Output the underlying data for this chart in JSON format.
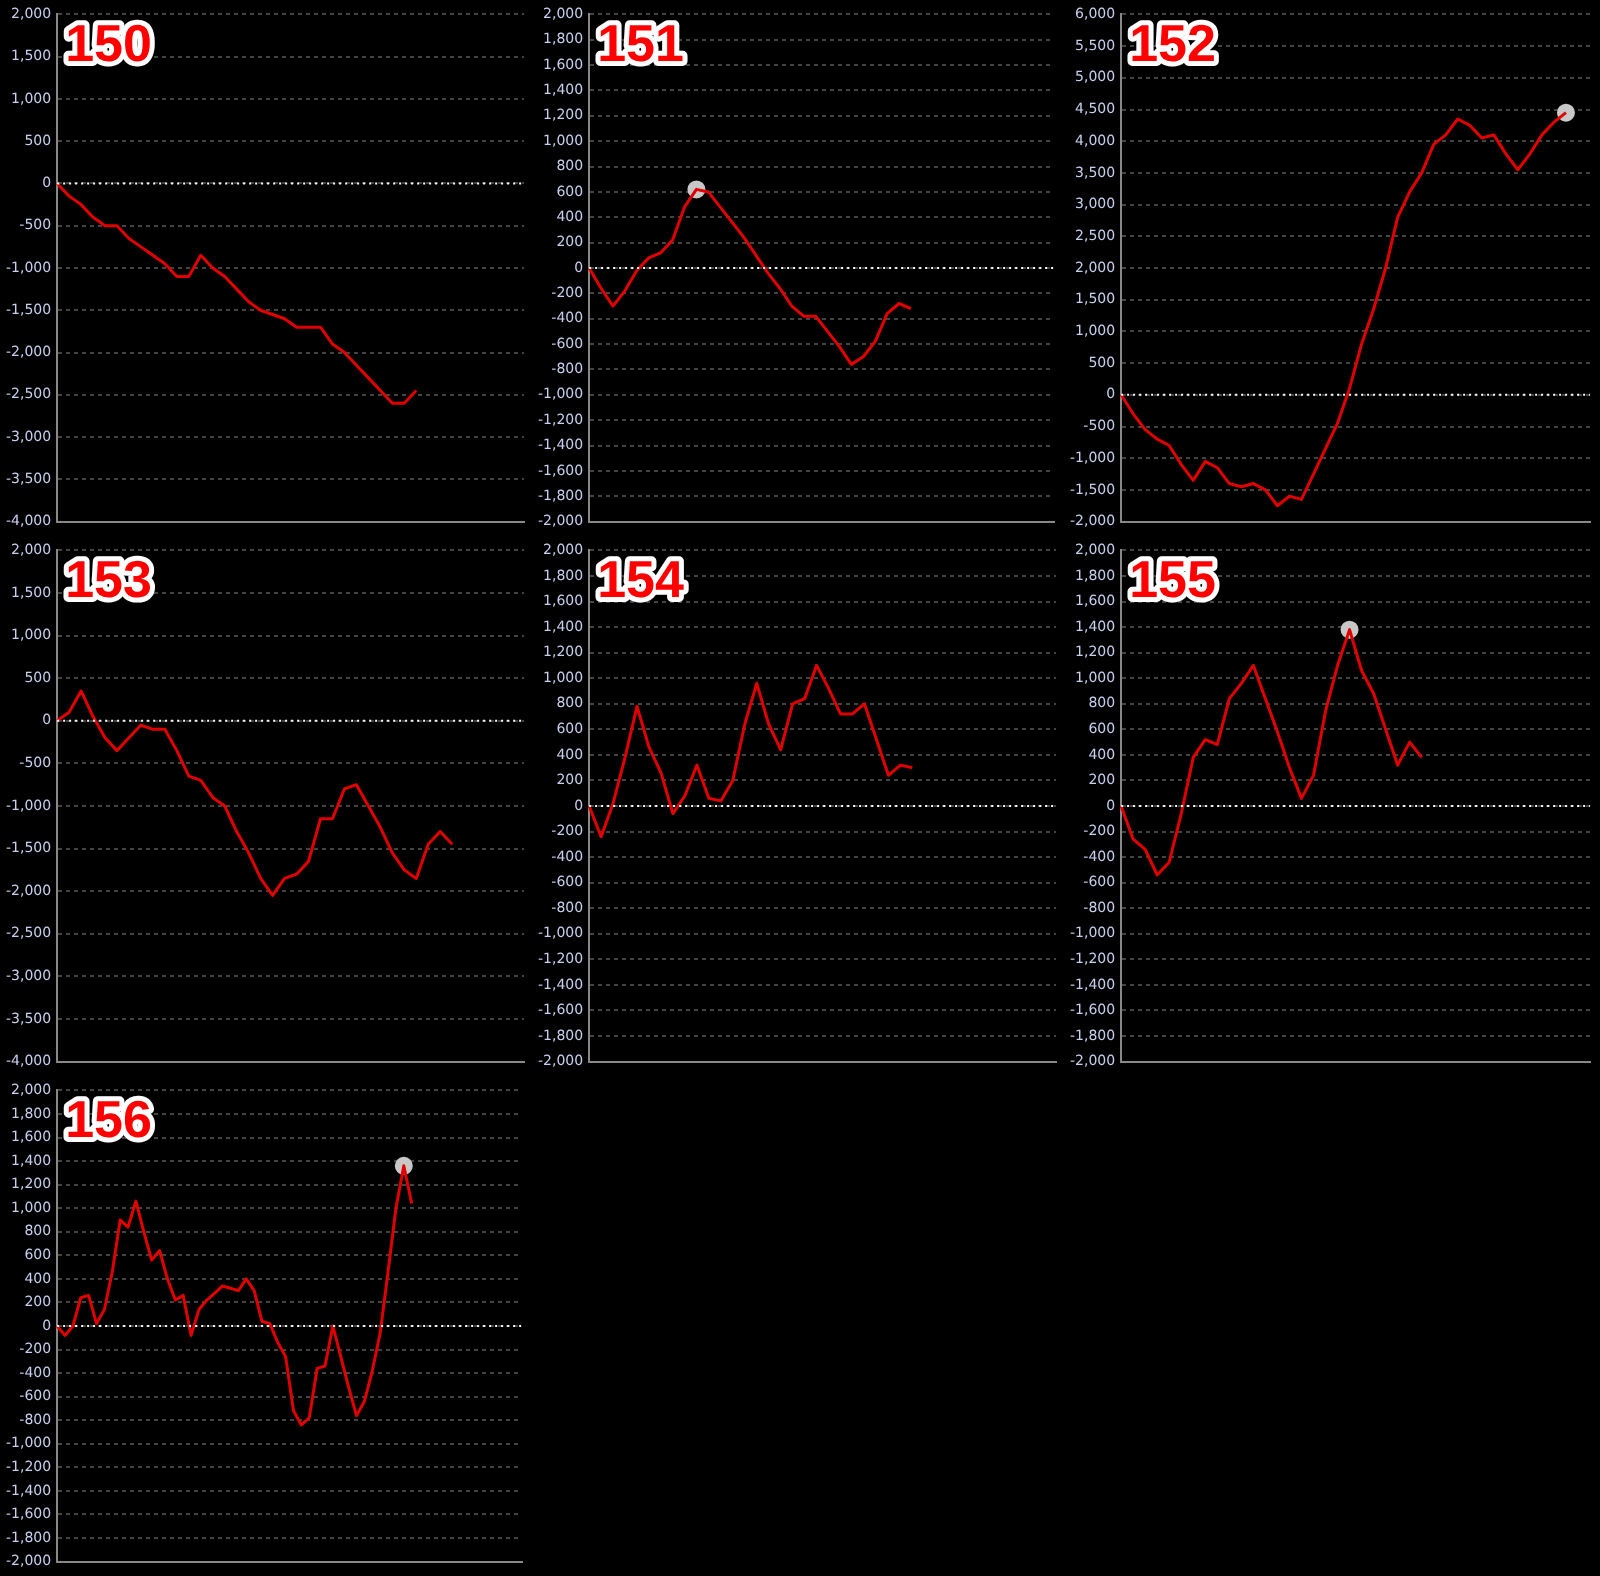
{
  "chart_data": [
    {
      "type": "line",
      "title": "150",
      "categories": [
        null,
        null,
        null,
        null,
        null,
        null,
        null,
        null,
        null,
        null,
        null,
        null,
        null,
        null,
        null,
        null,
        null,
        null,
        null,
        null,
        null,
        null,
        null,
        null,
        null,
        null,
        null,
        null,
        null,
        null,
        null,
        null,
        null,
        null,
        null,
        null,
        null,
        null,
        null,
        null
      ],
      "series": [
        {
          "type": "line",
          "marker": "none",
          "color": "#e00000",
          "values": [
            0,
            -150,
            -250,
            -400,
            -500,
            -500,
            -650,
            -750,
            -850,
            -950,
            -1100,
            -1100,
            -850,
            -1000,
            -1100,
            -1250,
            -1400,
            -1500,
            -1550,
            -1600,
            -1700,
            -1700,
            -1700,
            -1900,
            -2000,
            -2150,
            -2300,
            -2450,
            -2600,
            -2600,
            -2450,
            null,
            null,
            null,
            null,
            null,
            null,
            null,
            null,
            null
          ]
        }
      ],
      "ylim": [
        -4000,
        2000
      ],
      "yticks": [
        {
          "value": -4000,
          "label": "-4,000"
        },
        {
          "value": -3500,
          "label": "-3,500"
        },
        {
          "value": -3000,
          "label": "-3,000"
        },
        {
          "value": -2500,
          "label": "-2,500"
        },
        {
          "value": -2000,
          "label": "-2,000"
        },
        {
          "value": -1500,
          "label": "-1,500"
        },
        {
          "value": -1000,
          "label": "-1,000"
        },
        -500,
        0,
        500,
        {
          "value": 1000,
          "label": "1,000"
        },
        {
          "value": 1500,
          "label": "1,500"
        },
        {
          "value": 2000,
          "label": "2,000"
        }
      ],
      "grid": "y",
      "tick_labels": "y",
      "ref_lines": [
        {
          "axis": "y",
          "value": 0,
          "color": "#ffffff",
          "line_style": "dotted"
        }
      ]
    },
    {
      "type": "line",
      "title": "151",
      "categories": [
        null,
        null,
        null,
        null,
        null,
        null,
        null,
        null,
        null,
        null,
        null,
        null,
        null,
        null,
        null,
        null,
        null,
        null,
        null,
        null,
        null,
        null,
        null,
        null,
        null,
        null,
        null,
        null,
        null,
        null,
        null,
        null,
        null,
        null,
        null,
        null,
        null,
        null,
        null,
        null
      ],
      "series": [
        {
          "type": "line",
          "marker": "none",
          "color": "#e00000",
          "values": [
            0,
            -160,
            -300,
            -180,
            -20,
            80,
            120,
            220,
            480,
            620,
            600,
            480,
            360,
            240,
            100,
            -40,
            -160,
            -300,
            -380,
            -380,
            -500,
            -620,
            -760,
            -700,
            -580,
            -360,
            -280,
            -320,
            null,
            null,
            null,
            null,
            null,
            null,
            null,
            null,
            null,
            null,
            null,
            null
          ]
        },
        {
          "type": "scatter",
          "marker": "circle",
          "color": "#c8c8c8",
          "values": [
            null,
            null,
            null,
            null,
            null,
            null,
            null,
            null,
            null,
            620,
            null,
            null,
            null,
            null,
            null,
            null,
            null,
            null,
            null,
            null,
            null,
            null,
            null,
            null,
            null,
            null,
            null,
            null,
            null,
            null,
            null,
            null,
            null,
            null,
            null,
            null,
            null,
            null,
            null,
            null
          ]
        }
      ],
      "ylim": [
        -2000,
        2000
      ],
      "yticks": [
        {
          "value": -2000,
          "label": "-2,000"
        },
        {
          "value": -1800,
          "label": "-1,800"
        },
        {
          "value": -1600,
          "label": "-1,600"
        },
        {
          "value": -1400,
          "label": "-1,400"
        },
        {
          "value": -1200,
          "label": "-1,200"
        },
        {
          "value": -1000,
          "label": "-1,000"
        },
        -800,
        -600,
        -400,
        -200,
        0,
        200,
        400,
        600,
        800,
        {
          "value": 1000,
          "label": "1,000"
        },
        {
          "value": 1200,
          "label": "1,200"
        },
        {
          "value": 1400,
          "label": "1,400"
        },
        {
          "value": 1600,
          "label": "1,600"
        },
        {
          "value": 1800,
          "label": "1,800"
        },
        {
          "value": 2000,
          "label": "2,000"
        }
      ],
      "grid": "y",
      "tick_labels": "y",
      "ref_lines": [
        {
          "axis": "y",
          "value": 0,
          "color": "#ffffff",
          "line_style": "dotted"
        }
      ]
    },
    {
      "type": "line",
      "title": "152",
      "categories": [
        null,
        null,
        null,
        null,
        null,
        null,
        null,
        null,
        null,
        null,
        null,
        null,
        null,
        null,
        null,
        null,
        null,
        null,
        null,
        null,
        null,
        null,
        null,
        null,
        null,
        null,
        null,
        null,
        null,
        null,
        null,
        null,
        null,
        null,
        null,
        null,
        null,
        null,
        null,
        null
      ],
      "series": [
        {
          "type": "line",
          "marker": "none",
          "color": "#e00000",
          "values": [
            0,
            -300,
            -550,
            -700,
            -800,
            -1100,
            -1350,
            -1050,
            -1150,
            -1400,
            -1450,
            -1400,
            -1500,
            -1750,
            -1600,
            -1650,
            -1250,
            -850,
            -450,
            100,
            800,
            1350,
            2000,
            2800,
            3200,
            3500,
            3950,
            4100,
            4350,
            4250,
            4050,
            4100,
            3800,
            3550,
            3800,
            4100,
            4300,
            4450,
            null,
            null
          ]
        },
        {
          "type": "scatter",
          "marker": "circle",
          "color": "#c8c8c8",
          "values": [
            null,
            null,
            null,
            null,
            null,
            null,
            null,
            null,
            null,
            null,
            null,
            null,
            null,
            null,
            null,
            null,
            null,
            null,
            null,
            null,
            null,
            null,
            null,
            null,
            null,
            null,
            null,
            null,
            null,
            null,
            null,
            null,
            null,
            null,
            null,
            null,
            null,
            4450,
            null,
            null
          ]
        }
      ],
      "ylim": [
        -2000,
        6000
      ],
      "yticks": [
        {
          "value": -2000,
          "label": "-2,000"
        },
        {
          "value": -1500,
          "label": "-1,500"
        },
        {
          "value": -1000,
          "label": "-1,000"
        },
        -500,
        0,
        500,
        {
          "value": 1000,
          "label": "1,000"
        },
        {
          "value": 1500,
          "label": "1,500"
        },
        {
          "value": 2000,
          "label": "2,000"
        },
        {
          "value": 2500,
          "label": "2,500"
        },
        {
          "value": 3000,
          "label": "3,000"
        },
        {
          "value": 3500,
          "label": "3,500"
        },
        {
          "value": 4000,
          "label": "4,000"
        },
        {
          "value": 4500,
          "label": "4,500"
        },
        {
          "value": 5000,
          "label": "5,000"
        },
        {
          "value": 5500,
          "label": "5,500"
        },
        {
          "value": 6000,
          "label": "6,000"
        }
      ],
      "grid": "y",
      "tick_labels": "y",
      "ref_lines": [
        {
          "axis": "y",
          "value": 0,
          "color": "#ffffff",
          "line_style": "dotted"
        }
      ]
    },
    {
      "type": "line",
      "title": "153",
      "categories": [
        null,
        null,
        null,
        null,
        null,
        null,
        null,
        null,
        null,
        null,
        null,
        null,
        null,
        null,
        null,
        null,
        null,
        null,
        null,
        null,
        null,
        null,
        null,
        null,
        null,
        null,
        null,
        null,
        null,
        null,
        null,
        null,
        null,
        null,
        null,
        null,
        null,
        null,
        null,
        null
      ],
      "series": [
        {
          "type": "line",
          "marker": "none",
          "color": "#e00000",
          "values": [
            0,
            100,
            350,
            50,
            -200,
            -350,
            -200,
            -50,
            -100,
            -100,
            -350,
            -650,
            -700,
            -900,
            -1000,
            -1300,
            -1550,
            -1850,
            -2050,
            -1850,
            -1800,
            -1650,
            -1150,
            -1150,
            -800,
            -750,
            -1000,
            -1250,
            -1550,
            -1750,
            -1850,
            -1450,
            -1300,
            -1450,
            null,
            null,
            null,
            null,
            null,
            null
          ]
        }
      ],
      "ylim": [
        -4000,
        2000
      ],
      "yticks": [
        {
          "value": -4000,
          "label": "-4,000"
        },
        {
          "value": -3500,
          "label": "-3,500"
        },
        {
          "value": -3000,
          "label": "-3,000"
        },
        {
          "value": -2500,
          "label": "-2,500"
        },
        {
          "value": -2000,
          "label": "-2,000"
        },
        {
          "value": -1500,
          "label": "-1,500"
        },
        {
          "value": -1000,
          "label": "-1,000"
        },
        -500,
        0,
        500,
        {
          "value": 1000,
          "label": "1,000"
        },
        {
          "value": 1500,
          "label": "1,500"
        },
        {
          "value": 2000,
          "label": "2,000"
        }
      ],
      "grid": "y",
      "tick_labels": "y",
      "ref_lines": [
        {
          "axis": "y",
          "value": 0,
          "color": "#ffffff",
          "line_style": "dotted"
        }
      ]
    },
    {
      "type": "line",
      "title": "154",
      "categories": [
        null,
        null,
        null,
        null,
        null,
        null,
        null,
        null,
        null,
        null,
        null,
        null,
        null,
        null,
        null,
        null,
        null,
        null,
        null,
        null,
        null,
        null,
        null,
        null,
        null,
        null,
        null,
        null,
        null,
        null,
        null,
        null,
        null,
        null,
        null,
        null,
        null,
        null,
        null,
        null
      ],
      "series": [
        {
          "type": "line",
          "marker": "none",
          "color": "#e00000",
          "values": [
            0,
            -240,
            20,
            380,
            780,
            460,
            260,
            -60,
            80,
            320,
            60,
            40,
            200,
            640,
            960,
            640,
            440,
            800,
            840,
            1100,
            920,
            720,
            720,
            800,
            520,
            240,
            320,
            300,
            null,
            null,
            null,
            null,
            null,
            null,
            null,
            null,
            null,
            null,
            null,
            null
          ]
        }
      ],
      "ylim": [
        -2000,
        2000
      ],
      "yticks": [
        {
          "value": -2000,
          "label": "-2,000"
        },
        {
          "value": -1800,
          "label": "-1,800"
        },
        {
          "value": -1600,
          "label": "-1,600"
        },
        {
          "value": -1400,
          "label": "-1,400"
        },
        {
          "value": -1200,
          "label": "-1,200"
        },
        {
          "value": -1000,
          "label": "-1,000"
        },
        -800,
        -600,
        -400,
        -200,
        0,
        200,
        400,
        600,
        800,
        {
          "value": 1000,
          "label": "1,000"
        },
        {
          "value": 1200,
          "label": "1,200"
        },
        {
          "value": 1400,
          "label": "1,400"
        },
        {
          "value": 1600,
          "label": "1,600"
        },
        {
          "value": 1800,
          "label": "1,800"
        },
        {
          "value": 2000,
          "label": "2,000"
        }
      ],
      "grid": "y",
      "tick_labels": "y",
      "ref_lines": [
        {
          "axis": "y",
          "value": 0,
          "color": "#ffffff",
          "line_style": "dotted"
        }
      ]
    },
    {
      "type": "line",
      "title": "155",
      "categories": [
        null,
        null,
        null,
        null,
        null,
        null,
        null,
        null,
        null,
        null,
        null,
        null,
        null,
        null,
        null,
        null,
        null,
        null,
        null,
        null,
        null,
        null,
        null,
        null,
        null,
        null,
        null,
        null,
        null,
        null,
        null,
        null,
        null,
        null,
        null,
        null,
        null,
        null,
        null,
        null
      ],
      "series": [
        {
          "type": "line",
          "marker": "none",
          "color": "#e00000",
          "values": [
            0,
            -260,
            -340,
            -540,
            -440,
            -60,
            380,
            520,
            480,
            840,
            960,
            1100,
            840,
            580,
            300,
            60,
            240,
            740,
            1100,
            1380,
            1060,
            880,
            600,
            320,
            500,
            380,
            null,
            null,
            null,
            null,
            null,
            null,
            null,
            null,
            null,
            null,
            null,
            null,
            null,
            null
          ]
        },
        {
          "type": "scatter",
          "marker": "circle",
          "color": "#c8c8c8",
          "values": [
            null,
            null,
            null,
            null,
            null,
            null,
            null,
            null,
            null,
            null,
            null,
            null,
            null,
            null,
            null,
            null,
            null,
            null,
            null,
            1380,
            null,
            null,
            null,
            null,
            null,
            null,
            null,
            null,
            null,
            null,
            null,
            null,
            null,
            null,
            null,
            null,
            null,
            null,
            null,
            null
          ]
        }
      ],
      "ylim": [
        -2000,
        2000
      ],
      "yticks": [
        {
          "value": -2000,
          "label": "-2,000"
        },
        {
          "value": -1800,
          "label": "-1,800"
        },
        {
          "value": -1600,
          "label": "-1,600"
        },
        {
          "value": -1400,
          "label": "-1,400"
        },
        {
          "value": -1200,
          "label": "-1,200"
        },
        {
          "value": -1000,
          "label": "-1,000"
        },
        -800,
        -600,
        -400,
        -200,
        0,
        200,
        400,
        600,
        800,
        {
          "value": 1000,
          "label": "1,000"
        },
        {
          "value": 1200,
          "label": "1,200"
        },
        {
          "value": 1400,
          "label": "1,400"
        },
        {
          "value": 1600,
          "label": "1,600"
        },
        {
          "value": 1800,
          "label": "1,800"
        },
        {
          "value": 2000,
          "label": "2,000"
        }
      ],
      "grid": "y",
      "tick_labels": "y",
      "ref_lines": [
        {
          "axis": "y",
          "value": 0,
          "color": "#ffffff",
          "line_style": "dotted"
        }
      ]
    },
    {
      "type": "line",
      "title": "156",
      "categories": [
        null,
        null,
        null,
        null,
        null,
        null,
        null,
        null,
        null,
        null,
        null,
        null,
        null,
        null,
        null,
        null,
        null,
        null,
        null,
        null,
        null,
        null,
        null,
        null,
        null,
        null,
        null,
        null,
        null,
        null,
        null,
        null,
        null,
        null,
        null,
        null,
        null,
        null,
        null,
        null,
        null,
        null,
        null,
        null,
        null,
        null,
        null,
        null,
        null,
        null,
        null,
        null,
        null,
        null,
        null,
        null,
        null,
        null,
        null,
        null
      ],
      "series": [
        {
          "type": "line",
          "marker": "none",
          "color": "#e00000",
          "values": [
            0,
            -80,
            0,
            240,
            260,
            20,
            140,
            460,
            900,
            840,
            1060,
            800,
            560,
            640,
            400,
            220,
            260,
            -80,
            140,
            220,
            280,
            340,
            320,
            300,
            400,
            300,
            40,
            20,
            -140,
            -260,
            -720,
            -840,
            -780,
            -360,
            -340,
            0,
            -260,
            -520,
            -760,
            -640,
            -380,
            -60,
            460,
            1000,
            1360,
            1040,
            null,
            null,
            null,
            null,
            null,
            null,
            null,
            null,
            null,
            null,
            null,
            null,
            null,
            null
          ]
        },
        {
          "type": "scatter",
          "marker": "circle",
          "color": "#c8c8c8",
          "values": [
            null,
            null,
            null,
            null,
            null,
            null,
            null,
            null,
            null,
            null,
            null,
            null,
            null,
            null,
            null,
            null,
            null,
            null,
            null,
            null,
            null,
            null,
            null,
            null,
            null,
            null,
            null,
            null,
            null,
            null,
            null,
            null,
            null,
            null,
            null,
            null,
            null,
            null,
            null,
            null,
            null,
            null,
            null,
            null,
            1360,
            null,
            null,
            null,
            null,
            null,
            null,
            null,
            null,
            null,
            null,
            null,
            null,
            null,
            null,
            null
          ]
        }
      ],
      "ylim": [
        -2000,
        2000
      ],
      "yticks": [
        {
          "value": -2000,
          "label": "-2,000"
        },
        {
          "value": -1800,
          "label": "-1,800"
        },
        {
          "value": -1600,
          "label": "-1,600"
        },
        {
          "value": -1400,
          "label": "-1,400"
        },
        {
          "value": -1200,
          "label": "-1,200"
        },
        {
          "value": -1000,
          "label": "-1,000"
        },
        -800,
        -600,
        -400,
        -200,
        0,
        200,
        400,
        600,
        800,
        {
          "value": 1000,
          "label": "1,000"
        },
        {
          "value": 1200,
          "label": "1,200"
        },
        {
          "value": 1400,
          "label": "1,400"
        },
        {
          "value": 1600,
          "label": "1,600"
        },
        {
          "value": 1800,
          "label": "1,800"
        },
        {
          "value": 2000,
          "label": "2,000"
        }
      ],
      "grid": "y",
      "tick_labels": "y",
      "ref_lines": [
        {
          "axis": "y",
          "value": 0,
          "color": "#ffffff",
          "line_style": "dotted"
        }
      ]
    }
  ]
}
